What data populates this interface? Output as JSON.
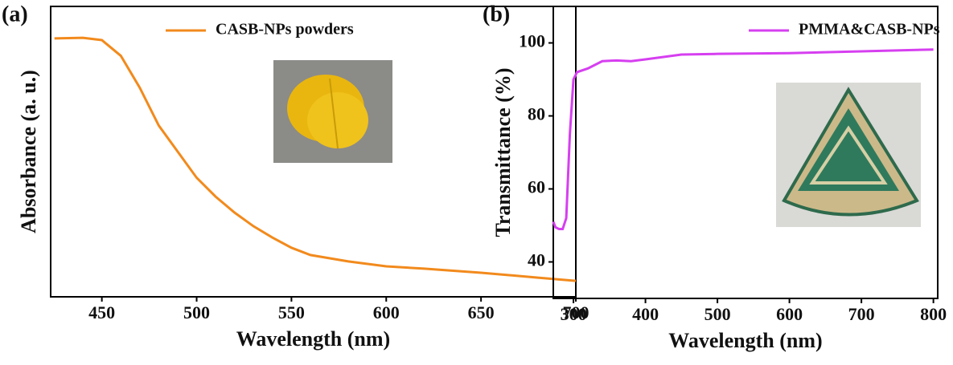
{
  "chart_data": [
    {
      "type": "line",
      "label": "(a)",
      "x_label": "Wavelength (nm)",
      "y_label": "Absorbance (a. u.)",
      "xlim": [
        423,
        700
      ],
      "ylim": [
        0,
        1
      ],
      "xticks": [
        450,
        500,
        550,
        600,
        650,
        700
      ],
      "legend": "upper right",
      "x": [
        425,
        440,
        450,
        460,
        470,
        480,
        490,
        500,
        510,
        520,
        530,
        540,
        550,
        560,
        580,
        600,
        620,
        650,
        680,
        700
      ],
      "series": [
        {
          "name": "CASB-NPs powders",
          "color": "#f28a1c",
          "values": [
            0.89,
            0.892,
            0.884,
            0.83,
            0.72,
            0.59,
            0.5,
            0.41,
            0.345,
            0.29,
            0.243,
            0.204,
            0.169,
            0.144,
            0.122,
            0.105,
            0.097,
            0.083,
            0.066,
            0.055
          ]
        }
      ]
    },
    {
      "type": "line",
      "label": "(b)",
      "x_label": "Wavelength  (nm)",
      "y_label": "Transmittance (%)",
      "xlim": [
        272,
        806
      ],
      "ylim": [
        30,
        110
      ],
      "xticks": [
        300,
        400,
        500,
        600,
        700,
        800
      ],
      "yticks": [
        40,
        60,
        80,
        100
      ],
      "legend": "upper right",
      "x": [
        272,
        275,
        280,
        285,
        290,
        295,
        300,
        305,
        320,
        340,
        360,
        380,
        400,
        450,
        500,
        600,
        700,
        800
      ],
      "series": [
        {
          "name": "PMMA&CASB-NPs",
          "color": "#d63ff0",
          "values": [
            51,
            49.5,
            49,
            49,
            52,
            75,
            90,
            92,
            93,
            95,
            95.2,
            95,
            95.5,
            96.8,
            97,
            97.2,
            97.7,
            98.2
          ]
        }
      ]
    }
  ]
}
